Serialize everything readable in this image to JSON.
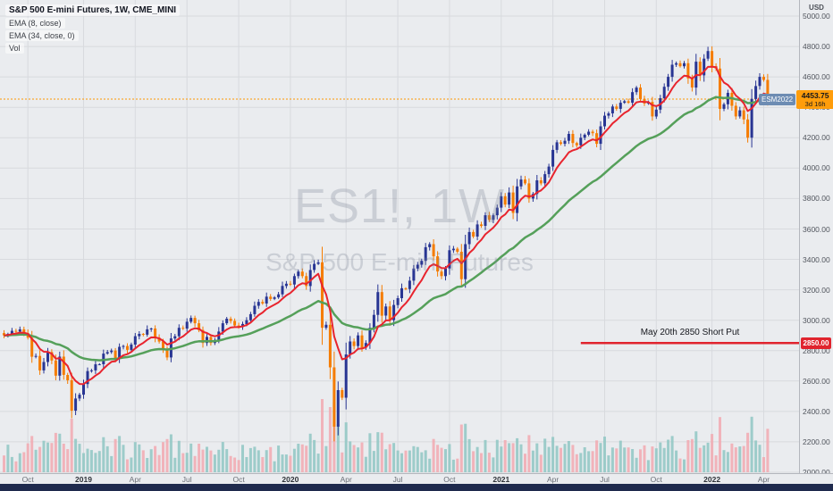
{
  "header": {
    "symbol_title": "S&P 500 E-mini Futures, 1W, CME_MINI",
    "indicators": [
      "EMA (8, close)",
      "EMA (34, close, 0)",
      "Vol"
    ]
  },
  "watermark": {
    "line1": "ES1!, 1W",
    "line2": "S&P 500 E-mini Futures"
  },
  "price_axis": {
    "currency": "USD",
    "labels": [
      "5000.00",
      "4800.00",
      "4600.00",
      "4400.00",
      "4200.00",
      "4000.00",
      "3800.00",
      "3600.00",
      "3400.00",
      "3200.00",
      "3000.00",
      "2800.00",
      "2600.00",
      "2400.00",
      "2200.00",
      "2000.00"
    ]
  },
  "time_axis": {
    "ticks": [
      {
        "label": "Oct",
        "week": 6,
        "year": false
      },
      {
        "label": "2019",
        "week": 20,
        "year": true
      },
      {
        "label": "Apr",
        "week": 33,
        "year": false
      },
      {
        "label": "Jul",
        "week": 46,
        "year": false
      },
      {
        "label": "Oct",
        "week": 59,
        "year": false
      },
      {
        "label": "2020",
        "week": 72,
        "year": true
      },
      {
        "label": "Apr",
        "week": 86,
        "year": false
      },
      {
        "label": "Jul",
        "week": 99,
        "year": false
      },
      {
        "label": "Oct",
        "week": 112,
        "year": false
      },
      {
        "label": "2021",
        "week": 125,
        "year": true
      },
      {
        "label": "Apr",
        "week": 138,
        "year": false
      },
      {
        "label": "Jul",
        "week": 151,
        "year": false
      },
      {
        "label": "Oct",
        "week": 164,
        "year": false
      },
      {
        "label": "2022",
        "week": 178,
        "year": true
      },
      {
        "label": "Apr",
        "week": 191,
        "year": false
      }
    ]
  },
  "last_price": {
    "contract": "ESM2022",
    "price": "4453.75",
    "countdown": "3d 16h",
    "value": 4453.75
  },
  "annotation": {
    "label": "May 20th 2850 Short Put",
    "price_tag": "2850.00",
    "value": 2850,
    "start_week": 145
  },
  "colors": {
    "up": "#283593",
    "down": "#f57c00",
    "vol_up": "#8fc7c3",
    "vol_down": "#f2a9b0",
    "ema_fast": "#e8242e",
    "ema_slow": "#55a05a",
    "annotation": "#e0242e",
    "last_price_line": "#ff9800",
    "grid": "#d8dade",
    "background": "#eaecef",
    "bottom_bar": "#1f2a4d"
  },
  "chart_data": {
    "type": "candlestick",
    "title": "S&P 500 E-mini Futures, 1W, CME_MINI",
    "symbol": "ES1!",
    "timeframe": "1W",
    "x_range": "Sep 2018 - Apr 2022, weekly bars",
    "y_axis_labels_range": [
      2000,
      5000
    ],
    "y_axis_step": 200,
    "last_close": 4453.75,
    "overlays": [
      {
        "name": "EMA 8 close",
        "color": "#e8242e"
      },
      {
        "name": "EMA 34 close",
        "color": "#55a05a"
      }
    ],
    "horizontal_line": {
      "price": 2850,
      "start_week": 145,
      "label": "May 20th 2850 Short Put"
    },
    "last_price_line": 4453.75,
    "volume": "relative pastel bars at pane bottom, teal up / pink down",
    "weekly_closes": [
      2900,
      2910,
      2930,
      2925,
      2940,
      2915,
      2885,
      2760,
      2765,
      2670,
      2725,
      2790,
      2735,
      2635,
      2760,
      2640,
      2605,
      2405,
      2485,
      2510,
      2580,
      2665,
      2670,
      2710,
      2710,
      2780,
      2790,
      2800,
      2745,
      2825,
      2830,
      2805,
      2840,
      2895,
      2910,
      2905,
      2940,
      2945,
      2885,
      2860,
      2805,
      2755,
      2880,
      2895,
      2950,
      2945,
      2990,
      3015,
      2980,
      2935,
      2850,
      2890,
      2850,
      2870,
      2925,
      2980,
      3010,
      2995,
      2965,
      2955,
      2975,
      3000,
      3040,
      3095,
      3120,
      3110,
      3155,
      3140,
      3150,
      3170,
      3225,
      3240,
      3235,
      3290,
      3320,
      3290,
      3225,
      3330,
      3370,
      3380,
      2950,
      2970,
      2690,
      2300,
      2540,
      2490,
      2775,
      2860,
      2830,
      2900,
      2820,
      2850,
      2950,
      3035,
      3185,
      3030,
      3090,
      3000,
      3100,
      3145,
      3210,
      3205,
      3260,
      3340,
      3365,
      3390,
      3480,
      3500,
      3420,
      3320,
      3290,
      3340,
      3460,
      3470,
      3450,
      3270,
      3500,
      3580,
      3550,
      3630,
      3620,
      3690,
      3660,
      3690,
      3740,
      3815,
      3760,
      3840,
      3705,
      3880,
      3925,
      3900,
      3800,
      3830,
      3920,
      3900,
      3960,
      4010,
      4120,
      4170,
      4160,
      4180,
      4225,
      4165,
      4150,
      4200,
      4220,
      4240,
      4230,
      4160,
      4275,
      4345,
      4360,
      4405,
      4390,
      4430,
      4440,
      4430,
      4500,
      4530,
      4455,
      4425,
      4435,
      4340,
      4385,
      4460,
      4535,
      4600,
      4680,
      4690,
      4670,
      4690,
      4590,
      4530,
      4700,
      4610,
      4720,
      4770,
      4670,
      4655,
      4390,
      4420,
      4495,
      4410,
      4340,
      4380,
      4320,
      4200,
      4455,
      4540,
      4600,
      4580,
      4453.75
    ]
  }
}
